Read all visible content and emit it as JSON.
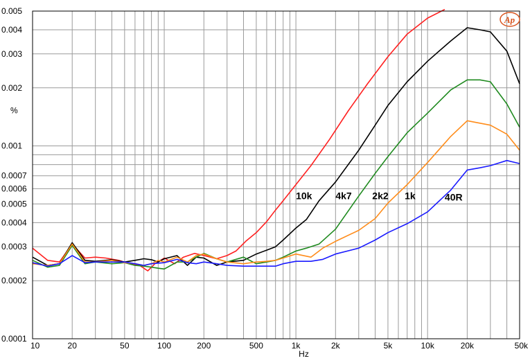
{
  "chart_data": {
    "type": "line",
    "title": "",
    "xlabel": "Hz",
    "ylabel": "%",
    "xscale": "log",
    "yscale": "log",
    "xlim": [
      10,
      50000
    ],
    "ylim": [
      0.0001,
      0.005
    ],
    "grid": true,
    "legend": "none",
    "x_ticks": [
      {
        "v": 10,
        "label": "10"
      },
      {
        "v": 20,
        "label": "20"
      },
      {
        "v": 50,
        "label": "50"
      },
      {
        "v": 100,
        "label": "100"
      },
      {
        "v": 200,
        "label": "200"
      },
      {
        "v": 500,
        "label": "500"
      },
      {
        "v": 1000,
        "label": "1k"
      },
      {
        "v": 2000,
        "label": "2k"
      },
      {
        "v": 5000,
        "label": "5k"
      },
      {
        "v": 10000,
        "label": "10k"
      },
      {
        "v": 20000,
        "label": "20k"
      },
      {
        "v": 50000,
        "label": "50k"
      }
    ],
    "y_ticks": [
      {
        "v": 0.0001,
        "label": "0.0001"
      },
      {
        "v": 0.0002,
        "label": "0.0002"
      },
      {
        "v": 0.0003,
        "label": "0.0003"
      },
      {
        "v": 0.0004,
        "label": "0.0004"
      },
      {
        "v": 0.0005,
        "label": "0.0005"
      },
      {
        "v": 0.0006,
        "label": "0.0006"
      },
      {
        "v": 0.0007,
        "label": "0.0007"
      },
      {
        "v": 0.001,
        "label": "0.001"
      },
      {
        "v": 0.002,
        "label": "0.002"
      },
      {
        "v": 0.003,
        "label": "0.003"
      },
      {
        "v": 0.004,
        "label": "0.004"
      },
      {
        "v": 0.005,
        "label": "0.005"
      }
    ],
    "series": [
      {
        "name": "10k",
        "color": "#ff2020",
        "x": [
          10,
          13,
          16,
          20,
          25,
          30,
          36,
          45,
          55,
          65,
          75,
          85,
          100,
          120,
          140,
          170,
          200,
          250,
          300,
          350,
          420,
          500,
          600,
          700,
          800,
          1000,
          1300,
          1800,
          2500,
          3500,
          5000,
          7000,
          10000,
          13500
        ],
        "y": [
          0.000295,
          0.000255,
          0.00025,
          0.00031,
          0.000262,
          0.000265,
          0.000262,
          0.000255,
          0.000245,
          0.00024,
          0.000225,
          0.000245,
          0.000262,
          0.000245,
          0.000265,
          0.000277,
          0.00027,
          0.00026,
          0.00027,
          0.000285,
          0.000322,
          0.000355,
          0.000405,
          0.000465,
          0.00052,
          0.00063,
          0.00079,
          0.00108,
          0.00152,
          0.0021,
          0.0029,
          0.0038,
          0.0046,
          0.0051
        ]
      },
      {
        "name": "4k7",
        "color": "#000000",
        "x": [
          10,
          13,
          16,
          20,
          25,
          30,
          40,
          50,
          60,
          70,
          80,
          90,
          100,
          125,
          150,
          175,
          200,
          250,
          300,
          400,
          500,
          600,
          700,
          800,
          1000,
          1200,
          1500,
          2000,
          3000,
          4000,
          5000,
          7000,
          10000,
          15000,
          20000,
          25000,
          30000,
          40000,
          50000
        ],
        "y": [
          0.000265,
          0.00024,
          0.000245,
          0.000315,
          0.000255,
          0.000252,
          0.000257,
          0.00025,
          0.000255,
          0.00026,
          0.000257,
          0.00025,
          0.00026,
          0.00027,
          0.00024,
          0.000265,
          0.000262,
          0.00024,
          0.00025,
          0.000255,
          0.000275,
          0.000288,
          0.0003,
          0.000325,
          0.000375,
          0.000415,
          0.00052,
          0.00065,
          0.00095,
          0.00128,
          0.00162,
          0.00215,
          0.00275,
          0.0035,
          0.0041,
          0.004,
          0.0039,
          0.0031,
          0.0021
        ]
      },
      {
        "name": "2k2",
        "color": "#1f8a1f",
        "x": [
          10,
          13,
          16,
          20,
          25,
          30,
          40,
          50,
          60,
          70,
          80,
          90,
          100,
          125,
          150,
          175,
          200,
          250,
          300,
          400,
          500,
          600,
          700,
          800,
          1000,
          1200,
          1500,
          2000,
          3000,
          4000,
          5000,
          7000,
          10000,
          15000,
          20000,
          25000,
          30000,
          40000,
          50000
        ],
        "y": [
          0.000255,
          0.000235,
          0.00024,
          0.000305,
          0.000245,
          0.00025,
          0.000245,
          0.000248,
          0.00024,
          0.000238,
          0.000235,
          0.000232,
          0.00023,
          0.00025,
          0.00025,
          0.000265,
          0.000277,
          0.00026,
          0.00025,
          0.000265,
          0.000245,
          0.00025,
          0.000255,
          0.000265,
          0.000285,
          0.000295,
          0.00031,
          0.00037,
          0.00055,
          0.00072,
          0.00088,
          0.00117,
          0.00148,
          0.00195,
          0.0022,
          0.0022,
          0.00215,
          0.00165,
          0.00125
        ]
      },
      {
        "name": "1k",
        "color": "#ff8c1a",
        "x": [
          10,
          13,
          16,
          20,
          25,
          30,
          40,
          50,
          60,
          70,
          80,
          90,
          100,
          125,
          150,
          175,
          200,
          250,
          300,
          400,
          500,
          600,
          700,
          800,
          1000,
          1300,
          1600,
          2000,
          3000,
          4000,
          5000,
          7000,
          10000,
          15000,
          20000,
          30000,
          40000,
          50000
        ],
        "y": [
          0.000245,
          0.00024,
          0.000245,
          0.00031,
          0.00025,
          0.00025,
          0.000255,
          0.000248,
          0.000245,
          0.00024,
          0.000245,
          0.000255,
          0.00025,
          0.000265,
          0.00025,
          0.00027,
          0.000275,
          0.00026,
          0.00025,
          0.000245,
          0.00025,
          0.000252,
          0.000255,
          0.000262,
          0.000275,
          0.000265,
          0.000295,
          0.00032,
          0.000365,
          0.00042,
          0.000505,
          0.00063,
          0.00082,
          0.00112,
          0.00135,
          0.00128,
          0.00115,
          0.00095
        ]
      },
      {
        "name": "40R",
        "color": "#1a1aff",
        "x": [
          10,
          13,
          16,
          20,
          25,
          30,
          40,
          50,
          60,
          70,
          80,
          100,
          125,
          150,
          175,
          200,
          250,
          300,
          400,
          500,
          600,
          700,
          800,
          1000,
          1300,
          1600,
          2000,
          3000,
          4000,
          5000,
          7000,
          10000,
          15000,
          20000,
          25000,
          30000,
          40000,
          50000
        ],
        "y": [
          0.000248,
          0.000238,
          0.000245,
          0.00027,
          0.000248,
          0.00025,
          0.00025,
          0.00025,
          0.000245,
          0.00024,
          0.000245,
          0.000248,
          0.000258,
          0.000248,
          0.000245,
          0.00025,
          0.000245,
          0.00024,
          0.000238,
          0.000238,
          0.000238,
          0.000238,
          0.000245,
          0.000252,
          0.000252,
          0.000258,
          0.000275,
          0.000295,
          0.000325,
          0.000355,
          0.000395,
          0.000455,
          0.00059,
          0.00075,
          0.00077,
          0.00079,
          0.00084,
          0.00081
        ]
      }
    ],
    "annotations": [
      {
        "text": "10k",
        "x": 1000,
        "y": 0.00053
      },
      {
        "text": "4k7",
        "x": 2000,
        "y": 0.00053
      },
      {
        "text": "2k2",
        "x": 3800,
        "y": 0.00053
      },
      {
        "text": "1k",
        "x": 6700,
        "y": 0.00053
      },
      {
        "text": "40R",
        "x": 13500,
        "y": 0.00052
      }
    ]
  },
  "logo": {
    "text": "Ap",
    "color": "#d9541e"
  }
}
